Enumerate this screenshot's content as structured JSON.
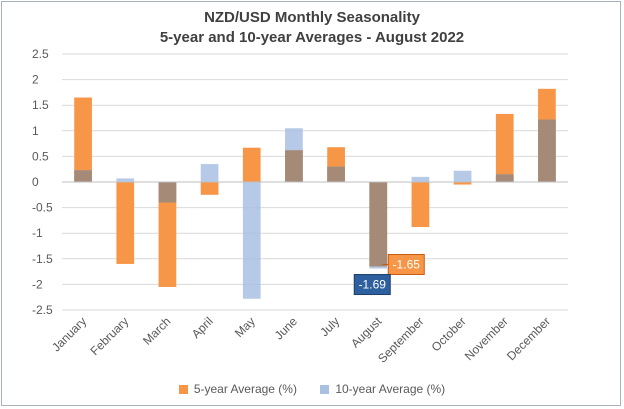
{
  "chart_data": {
    "type": "bar",
    "title_line1": "NZD/USD Monthly Seasonality",
    "title_line2": "5-year and 10-year Averages - August 2022",
    "categories": [
      "January",
      "February",
      "March",
      "April",
      "May",
      "June",
      "July",
      "August",
      "September",
      "October",
      "November",
      "December"
    ],
    "series": [
      {
        "name": "5-year Average (%)",
        "color": "#f79646",
        "values": [
          1.65,
          -1.6,
          -2.05,
          -0.25,
          0.67,
          0.62,
          0.68,
          -1.65,
          -0.88,
          -0.05,
          1.33,
          1.82
        ]
      },
      {
        "name": "10-year Average (%)",
        "color": "#a9c0e2",
        "values": [
          0.23,
          0.07,
          -0.4,
          0.35,
          -2.28,
          1.05,
          0.3,
          -1.69,
          0.1,
          0.22,
          0.15,
          1.22
        ]
      }
    ],
    "overlap_color": "#a68a78",
    "ylim": [
      -2.5,
      2.5
    ],
    "yticks": [
      "2.5",
      "2",
      "1.5",
      "1",
      "0.5",
      "0",
      "-0.5",
      "-1",
      "-1.5",
      "-2",
      "-2.5"
    ],
    "annotations": [
      {
        "label": "-1.65",
        "series": "5-year Average (%)",
        "color": "#f79646"
      },
      {
        "label": "-1.69",
        "series": "10-year Average (%)",
        "color": "#2e5f9e"
      }
    ]
  }
}
